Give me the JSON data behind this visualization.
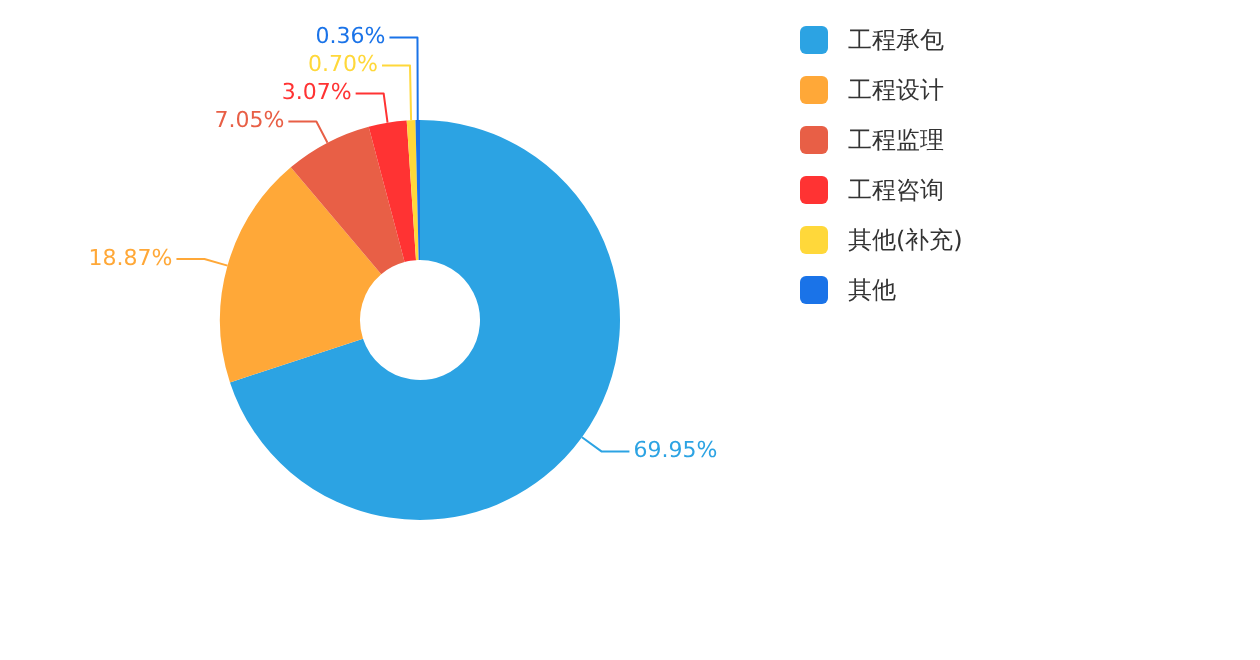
{
  "chart_data": {
    "type": "donut",
    "categories": [
      "工程承包",
      "工程设计",
      "工程监理",
      "工程咨询",
      "其他(补充)",
      "其他"
    ],
    "values": [
      69.95,
      18.87,
      7.05,
      3.07,
      0.7,
      0.36
    ],
    "value_labels": [
      "69.95%",
      "18.87%",
      "7.05%",
      "3.07%",
      "0.70%",
      "0.36%"
    ],
    "colors": [
      "#2ca3e3",
      "#ffa838",
      "#e85f46",
      "#ff3333",
      "#ffd83a",
      "#1a73e8"
    ],
    "legend": "right"
  }
}
